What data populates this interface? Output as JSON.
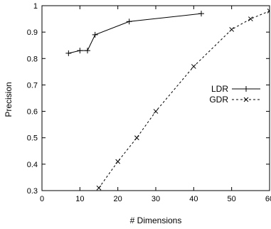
{
  "chart_data": {
    "type": "line",
    "xlabel": "# Dimensions",
    "ylabel": "Precision",
    "xlim": [
      0,
      60
    ],
    "ylim": [
      0.3,
      1.0
    ],
    "xticks": [
      0,
      10,
      20,
      30,
      40,
      50,
      60
    ],
    "xtick_labels": [
      "0",
      "10",
      "20",
      "30",
      "40",
      "50",
      "60"
    ],
    "yticks": [
      0.3,
      0.4,
      0.5,
      0.6,
      0.7,
      0.8,
      0.9,
      1.0
    ],
    "ytick_labels": [
      "0.3",
      "0.4",
      "0.5",
      "0.6",
      "0.7",
      "0.8",
      "0.9",
      "1"
    ],
    "grid": false,
    "legend_position": "right",
    "series": [
      {
        "name": "LDR",
        "line_style": "solid",
        "marker": "plus",
        "color": "#000000",
        "x": [
          7,
          10,
          12,
          14,
          23,
          42
        ],
        "y": [
          0.82,
          0.83,
          0.83,
          0.89,
          0.94,
          0.97
        ]
      },
      {
        "name": "GDR",
        "line_style": "dashed",
        "marker": "cross",
        "color": "#000000",
        "x": [
          15,
          20,
          25,
          30,
          40,
          50,
          55,
          60
        ],
        "y": [
          0.31,
          0.41,
          0.5,
          0.6,
          0.77,
          0.91,
          0.95,
          0.98
        ]
      }
    ]
  }
}
